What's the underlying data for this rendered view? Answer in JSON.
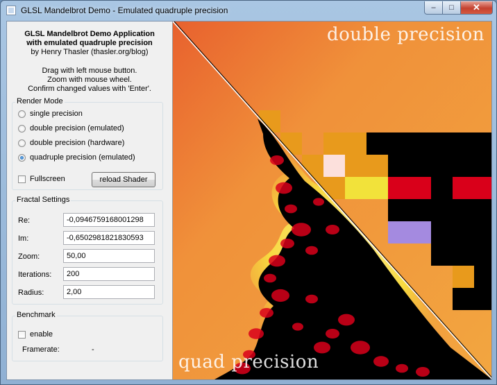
{
  "window": {
    "title": "GLSL Mandelbrot Demo - Emulated quadruple precision",
    "icon": "app-window-icon",
    "controls": {
      "minimize": "–",
      "maximize": "□",
      "close": "✕"
    }
  },
  "header": {
    "line1": "GLSL Mandelbrot Demo Application",
    "line2": "with emulated quadruple precision",
    "line3": "by Henry Thasler (thasler.org/blog)",
    "help1": "Drag with left mouse button.",
    "help2": "Zoom with mouse wheel.",
    "help3": "Confirm changed values with 'Enter'."
  },
  "render_mode": {
    "title": "Render Mode",
    "options": [
      {
        "label": "single precision",
        "selected": false
      },
      {
        "label": "double precision (emulated)",
        "selected": false
      },
      {
        "label": "double precision (hardware)",
        "selected": false
      },
      {
        "label": "quadruple precision (emulated)",
        "selected": true
      }
    ],
    "fullscreen_label": "Fullscreen",
    "fullscreen_checked": false,
    "reload_label": "reload Shader"
  },
  "fractal_settings": {
    "title": "Fractal Settings",
    "fields": [
      {
        "label": "Re:",
        "value": "-0,0946759168001298"
      },
      {
        "label": "Im:",
        "value": "-0,6502981821830593"
      },
      {
        "label": "Zoom:",
        "value": "50,00"
      },
      {
        "label": "Iterations:",
        "value": "200"
      },
      {
        "label": "Radius:",
        "value": "2,00"
      }
    ]
  },
  "benchmark": {
    "title": "Benchmark",
    "enable_label": "enable",
    "enable_checked": false,
    "framerate_label": "Framerate:",
    "framerate_value": "-"
  },
  "render_view": {
    "top_label": "double precision",
    "bottom_label": "quad precision",
    "colors": {
      "orange": "#f0913a",
      "black": "#000000",
      "red": "#d9001a",
      "yellow": "#f2e23a",
      "violet": "#a48ae0",
      "glow": "#f8e85a"
    }
  }
}
